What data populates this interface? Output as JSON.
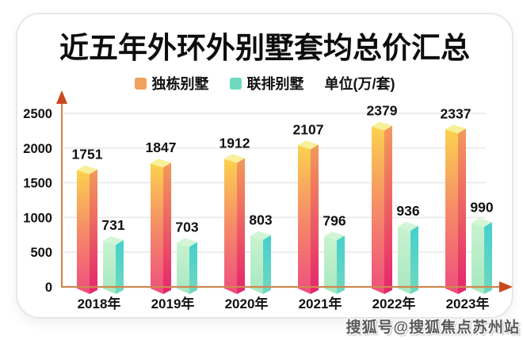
{
  "chart_data": {
    "type": "bar",
    "title": "近五年外环外别墅套均总价汇总",
    "unit_label": "单位(万/套)",
    "categories": [
      "2018年",
      "2019年",
      "2020年",
      "2021年",
      "2022年",
      "2023年"
    ],
    "series": [
      {
        "name": "独栋别墅",
        "values": [
          1751,
          1847,
          1912,
          2107,
          2379,
          2337
        ],
        "colors": {
          "legend": "#F0A15E",
          "top_fill": "#F7F099",
          "front_stops": [
            "#FBD24E",
            "#F58A68",
            "#EF4E7E"
          ],
          "side_stops": [
            "#F39A5B",
            "#E5246D"
          ]
        }
      },
      {
        "name": "联排别墅",
        "values": [
          731,
          703,
          803,
          796,
          936,
          990
        ],
        "colors": {
          "legend": "#6FD9C0",
          "top_fill": "#D2F5D6",
          "front_stops": [
            "#C9F2CF",
            "#A6E8C1"
          ],
          "side_stops": [
            "#45CFCE",
            "#6FD9BE"
          ]
        }
      }
    ],
    "ylim": [
      0,
      2500
    ],
    "yticks": [
      0,
      500,
      1000,
      1500,
      2000,
      2500
    ],
    "grid": true,
    "legend_position": "top",
    "xlabel": "",
    "ylabel": "",
    "axis_color": "#CF8850",
    "arrow_color": "#C8491E",
    "grid_color": "#E9E9E9",
    "label_color": "#111111"
  },
  "watermark": "搜狐号@搜狐焦点苏州站"
}
